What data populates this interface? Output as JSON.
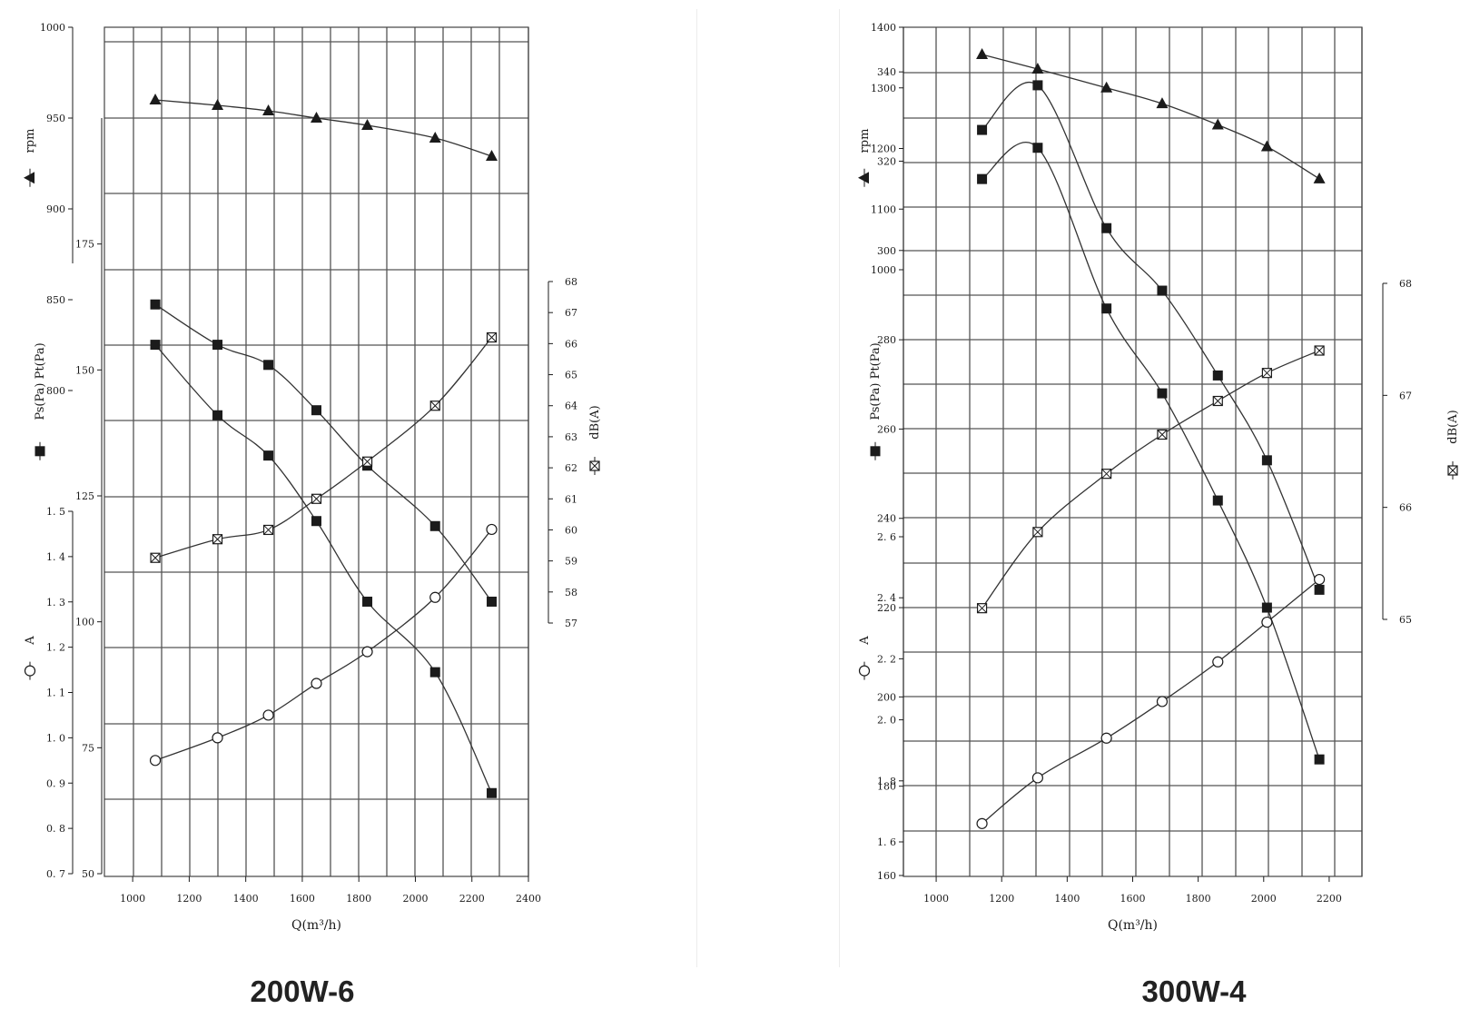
{
  "charts": [
    {
      "type": "line",
      "caption": "200W-6",
      "xlabel": "Q(m³/h)",
      "xlim": [
        900,
        2400
      ],
      "x_ticks": [
        1000,
        1200,
        1400,
        1600,
        1800,
        2000,
        2200,
        2400
      ],
      "scales": {
        "rpm": {
          "label": "rpm",
          "lim": [
            870,
            1000
          ],
          "ticks": [
            1000,
            950,
            900,
            850,
            800
          ]
        },
        "pa": {
          "label": "Ps(Pa) Pt(Pa)",
          "lim": [
            50,
            200
          ],
          "ticks": [
            175,
            150,
            125,
            100,
            75,
            50
          ]
        },
        "amp": {
          "label": "A",
          "lim": [
            0.7,
            1.5
          ],
          "ticks": [
            1.5,
            1.4,
            1.3,
            1.2,
            1.1,
            1.0,
            0.9,
            0.8,
            0.7
          ]
        },
        "db": {
          "label": "dB(A)",
          "lim": [
            57,
            68
          ],
          "ticks": [
            68,
            67,
            66,
            65,
            64,
            63,
            62,
            61,
            60,
            59,
            58,
            57
          ]
        }
      },
      "series": [
        {
          "scale": "rpm",
          "marker": "triangle",
          "x": [
            1080,
            1300,
            1480,
            1650,
            1830,
            2070,
            2270
          ],
          "y": [
            960,
            957,
            954,
            950,
            946,
            939,
            929
          ]
        },
        {
          "scale": "pa",
          "marker": "square",
          "x": [
            1080,
            1300,
            1480,
            1650,
            1830,
            2070,
            2270
          ],
          "y": [
            163,
            155,
            151,
            142,
            131,
            119,
            104
          ]
        },
        {
          "scale": "pa",
          "marker": "square",
          "x": [
            1080,
            1300,
            1480,
            1650,
            1830,
            2070,
            2270
          ],
          "y": [
            155,
            141,
            133,
            120,
            104,
            90,
            66
          ]
        },
        {
          "scale": "db",
          "marker": "crossed-square",
          "x": [
            1080,
            1300,
            1480,
            1650,
            1830,
            2070,
            2270
          ],
          "y": [
            59.1,
            59.7,
            60.0,
            61.0,
            62.2,
            64.0,
            66.2
          ]
        },
        {
          "scale": "amp",
          "marker": "circle",
          "x": [
            1080,
            1300,
            1480,
            1650,
            1830,
            2070,
            2270
          ],
          "y": [
            0.95,
            1.0,
            1.05,
            1.12,
            1.19,
            1.31,
            1.46
          ]
        }
      ]
    },
    {
      "type": "line",
      "caption": "300W-4",
      "xlabel": "Q(m³/h)",
      "xlim": [
        900,
        2300
      ],
      "x_ticks": [
        1000,
        1200,
        1400,
        1600,
        1800,
        2000,
        2200
      ],
      "scales": {
        "rpm": {
          "label": "rpm",
          "lim": [
            1000,
            1400
          ],
          "ticks": [
            1400,
            1300,
            1200,
            1100,
            1000
          ]
        },
        "pa": {
          "label": "Ps(Pa) Pt(Pa)",
          "lim": [
            160,
            350
          ],
          "ticks": [
            340,
            320,
            300,
            280,
            260,
            240,
            220,
            200,
            180,
            160
          ]
        },
        "amp": {
          "label": "A",
          "lim": [
            1.6,
            2.6
          ],
          "ticks": [
            2.6,
            2.4,
            2.2,
            2.0,
            1.8,
            1.6
          ]
        },
        "db": {
          "label": "dB(A)",
          "lim": [
            65,
            68
          ],
          "ticks": [
            68,
            67,
            66,
            65
          ]
        }
      },
      "series": [
        {
          "scale": "rpm",
          "marker": "triangle",
          "x": [
            1140,
            1310,
            1520,
            1690,
            1860,
            2010,
            2170
          ],
          "y": [
            1355,
            1331,
            1300,
            1274,
            1239,
            1203,
            1150
          ]
        },
        {
          "scale": "pa",
          "marker": "square",
          "x": [
            1140,
            1310,
            1520,
            1690,
            1860,
            2010,
            2170
          ],
          "y": [
            327,
            337,
            305,
            291,
            272,
            253,
            224
          ]
        },
        {
          "scale": "pa",
          "marker": "square",
          "x": [
            1140,
            1310,
            1520,
            1690,
            1860,
            2010,
            2170
          ],
          "y": [
            316,
            323,
            287,
            268,
            244,
            220,
            186
          ]
        },
        {
          "scale": "db",
          "marker": "crossed-square",
          "x": [
            1140,
            1310,
            1520,
            1690,
            1860,
            2010,
            2170
          ],
          "y": [
            65.1,
            65.78,
            66.3,
            66.65,
            66.95,
            67.2,
            67.4
          ]
        },
        {
          "scale": "amp",
          "marker": "circle",
          "x": [
            1140,
            1310,
            1520,
            1690,
            1860,
            2010,
            2170
          ],
          "y": [
            1.66,
            1.81,
            1.94,
            2.06,
            2.19,
            2.32,
            2.46
          ]
        }
      ]
    }
  ]
}
